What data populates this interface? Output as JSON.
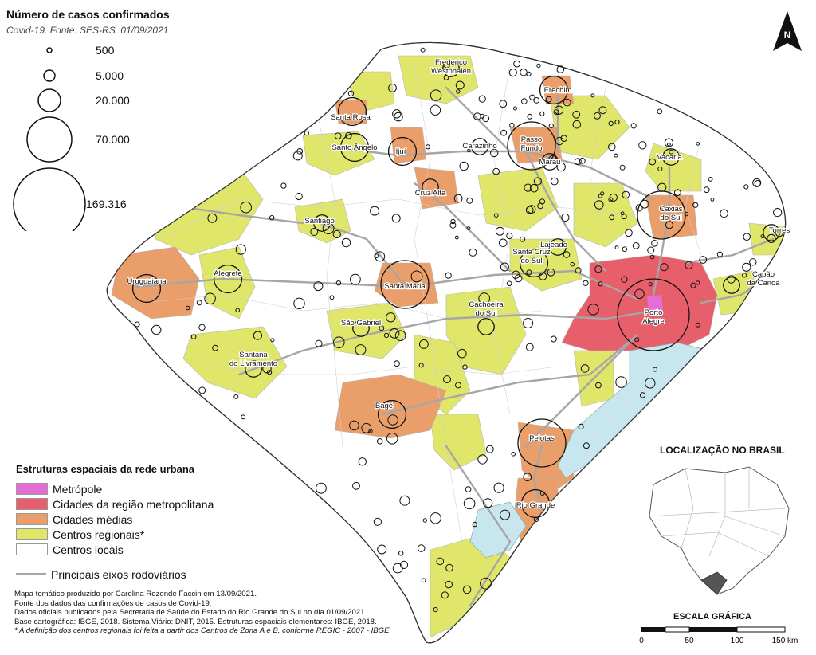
{
  "header": {
    "title": "Número de casos confirmados",
    "subtitle": "Covid-19. Fonte: SES-RS. 01/09/2021"
  },
  "size_legend": [
    {
      "label": "500"
    },
    {
      "label": "5.000"
    },
    {
      "label": "20.000"
    },
    {
      "label": "70.000"
    },
    {
      "label": "169.316"
    }
  ],
  "category_legend": {
    "title": "Estruturas espaciais da rede urbana",
    "items": [
      {
        "label": "Metrópole",
        "color": "#e36fd6"
      },
      {
        "label": "Cidades da região metropolitana",
        "color": "#e65f6b"
      },
      {
        "label": "Cidades médias",
        "color": "#ea9f6a"
      },
      {
        "label": "Centros regionais*",
        "color": "#dfe66a"
      },
      {
        "label": "Centros locais",
        "color": "#ffffff"
      }
    ],
    "roads_label": "Principais eixos rodoviários",
    "road_color": "#a6a6a6",
    "water_color": "#c8e6ee"
  },
  "credits": [
    "Mapa temático produzido por Carolina Rezende Faccin em 13/09/2021.",
    "Fonte dos dados das confirmações de casos de Covid-19:",
    "Dados oficiais publicados pela Secretaria de Saúde do Estado do Rio Grande do Sul no dia 01/09/2021",
    "Base cartográfica: IBGE, 2018. Sistema Viário: DNIT, 2015. Estruturas espaciais elementares: IBGE, 2018.",
    "* A definição dos centros regionais foi feita a partir dos Centros de Zona A e B, conforme REGIC - 2007 - IBGE."
  ],
  "north_arrow": {
    "label": "N",
    "icon": "north-arrow-icon"
  },
  "locator": {
    "title": "LOCALIZAÇÃO NO BRASIL"
  },
  "scale_bar": {
    "title": "ESCALA GRÁFICA",
    "ticks": [
      "0",
      "50",
      "100",
      "150 km"
    ]
  },
  "cities": [
    {
      "name": "Frederico\nWestphalen",
      "cases": 5000
    },
    {
      "name": "Erechim",
      "cases": 20000
    },
    {
      "name": "Santa Rosa",
      "cases": 20000
    },
    {
      "name": "Santo Ângelo",
      "cases": 20000
    },
    {
      "name": "Ijuí",
      "cases": 20000
    },
    {
      "name": "Carazinho",
      "cases": 5000
    },
    {
      "name": "Passo\nFundo",
      "cases": 70000
    },
    {
      "name": "Marau",
      "cases": 5000
    },
    {
      "name": "Vacaria",
      "cases": 5000
    },
    {
      "name": "Cruz Alta",
      "cases": 5000
    },
    {
      "name": "Caxias\ndo Sul",
      "cases": 70000
    },
    {
      "name": "Torres",
      "cases": 5000
    },
    {
      "name": "Santiago",
      "cases": 5000
    },
    {
      "name": "Lajeado",
      "cases": 5000
    },
    {
      "name": "Santa Cruz\ndo Sul",
      "cases": 20000
    },
    {
      "name": "Uruguaiana",
      "cases": 20000
    },
    {
      "name": "Alegrete",
      "cases": 20000
    },
    {
      "name": "Santa Maria",
      "cases": 70000
    },
    {
      "name": "Capão\nda Canoa",
      "cases": 5000
    },
    {
      "name": "Porto\nAlegre",
      "cases": 169316
    },
    {
      "name": "São Gabriel",
      "cases": 5000
    },
    {
      "name": "Cachoeira\ndo Sul",
      "cases": 5000
    },
    {
      "name": "Santana\ndo Livramento",
      "cases": 5000
    },
    {
      "name": "Bagé",
      "cases": 20000
    },
    {
      "name": "Pelotas",
      "cases": 70000
    },
    {
      "name": "Rio Grande",
      "cases": 20000
    }
  ]
}
